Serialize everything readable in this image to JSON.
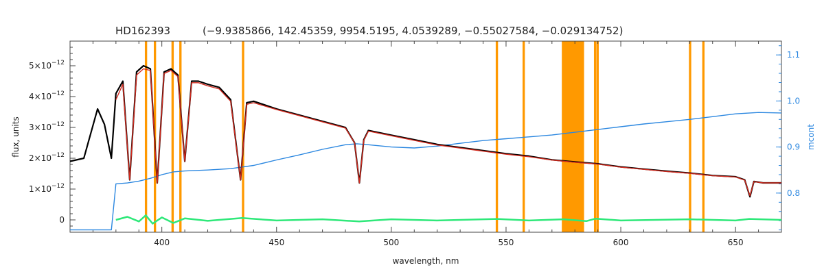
{
  "chart_data": {
    "type": "line",
    "title": "HD162393",
    "subtitle": "(−9.9385866, 142.45359, 9954.5195, 4.0539289, −0.55027584, −0.029134752)",
    "xlabel": "wavelength, nm",
    "ylabel": "flux, units",
    "y2label": "mcont",
    "xlim": [
      360,
      670
    ],
    "ylim": [
      -4e-13,
      5.8e-12
    ],
    "y2lim": [
      0.715,
      1.13
    ],
    "x_ticks": [
      400,
      450,
      500,
      550,
      600,
      650
    ],
    "x_tick_labels": [
      "400",
      "450",
      "500",
      "550",
      "600",
      "650"
    ],
    "y_ticks": [
      0,
      1e-12,
      2e-12,
      3e-12,
      4e-12,
      5e-12
    ],
    "y_tick_labels": [
      {
        "mant": "0",
        "exp": ""
      },
      {
        "mant": "1×10",
        "exp": "−12"
      },
      {
        "mant": "2×10",
        "exp": "−12"
      },
      {
        "mant": "3×10",
        "exp": "−12"
      },
      {
        "mant": "4×10",
        "exp": "−12"
      },
      {
        "mant": "5×10",
        "exp": "−12"
      }
    ],
    "y2_ticks": [
      0.8,
      0.9,
      1.0,
      1.1
    ],
    "y2_tick_labels": [
      "0.8",
      "0.9",
      "1.0",
      "1.1"
    ],
    "masked_bands": [
      [
        392.6,
        393.6
      ],
      [
        396.5,
        397.5
      ],
      [
        404.2,
        405.2
      ],
      [
        407.6,
        408.6
      ],
      [
        434.9,
        435.9
      ],
      [
        545.5,
        546.5
      ],
      [
        557.2,
        558.2
      ],
      [
        574.3,
        584.0
      ],
      [
        588.3,
        589.3
      ],
      [
        589.4,
        590.4
      ],
      [
        629.7,
        630.7
      ],
      [
        635.5,
        636.5
      ]
    ],
    "series": [
      {
        "name": "",
        "role": "observed",
        "color": "#000000",
        "axis": "left",
        "x": [
          360,
          366,
          369,
          372,
          375,
          378,
          380,
          383,
          386,
          389,
          392,
          395,
          398,
          401,
          404,
          407,
          410,
          413,
          416,
          420,
          425,
          430,
          434.3,
          437,
          440,
          450,
          460,
          470,
          480,
          484,
          486.1,
          488,
          490,
          500,
          510,
          520,
          530,
          540,
          550,
          560,
          570,
          580,
          590,
          600,
          610,
          620,
          630,
          640,
          650,
          654,
          656.3,
          658,
          662,
          670
        ],
        "y": [
          1.9e-12,
          2e-12,
          2.8e-12,
          3.6e-12,
          3.1e-12,
          2e-12,
          4.1e-12,
          4.5e-12,
          1.3e-12,
          4.8e-12,
          5e-12,
          4.9e-12,
          1.2e-12,
          4.8e-12,
          4.9e-12,
          4.7e-12,
          1.9e-12,
          4.5e-12,
          4.5e-12,
          4.4e-12,
          4.3e-12,
          3.9e-12,
          1.3e-12,
          3.8e-12,
          3.85e-12,
          3.6e-12,
          3.4e-12,
          3.2e-12,
          3e-12,
          2.5e-12,
          1.2e-12,
          2.6e-12,
          2.9e-12,
          2.75e-12,
          2.6e-12,
          2.45e-12,
          2.35e-12,
          2.25e-12,
          2.15e-12,
          2.07e-12,
          1.95e-12,
          1.88e-12,
          1.82e-12,
          1.72e-12,
          1.65e-12,
          1.58e-12,
          1.52e-12,
          1.44e-12,
          1.4e-12,
          1.3e-12,
          7.5e-13,
          1.25e-12,
          1.2e-12,
          1.2e-12
        ]
      },
      {
        "name": "",
        "role": "model",
        "color": "#d42a1e",
        "axis": "left",
        "x": [
          380,
          383,
          386,
          389,
          392,
          395,
          398,
          401,
          404,
          407,
          410,
          413,
          416,
          420,
          425,
          430,
          434.3,
          437,
          440,
          450,
          460,
          470,
          480,
          484,
          486.1,
          488,
          490,
          500,
          510,
          520,
          530,
          540,
          550,
          560,
          570,
          580,
          590,
          600,
          610,
          620,
          630,
          640,
          650,
          654,
          656.3,
          658,
          662,
          670
        ],
        "y": [
          3.9e-12,
          4.4e-12,
          1.3e-12,
          4.7e-12,
          4.9e-12,
          4.85e-12,
          1.2e-12,
          4.75e-12,
          4.85e-12,
          4.65e-12,
          1.9e-12,
          4.45e-12,
          4.45e-12,
          4.35e-12,
          4.25e-12,
          3.85e-12,
          1.3e-12,
          3.75e-12,
          3.8e-12,
          3.58e-12,
          3.38e-12,
          3.18e-12,
          2.98e-12,
          2.5e-12,
          1.2e-12,
          2.58e-12,
          2.88e-12,
          2.73e-12,
          2.58e-12,
          2.43e-12,
          2.33e-12,
          2.23e-12,
          2.13e-12,
          2.05e-12,
          1.94e-12,
          1.87e-12,
          1.81e-12,
          1.71e-12,
          1.64e-12,
          1.57e-12,
          1.51e-12,
          1.43e-12,
          1.39e-12,
          1.29e-12,
          7.8e-13,
          1.24e-12,
          1.2e-12,
          1.2e-12
        ]
      },
      {
        "name": "",
        "role": "residual",
        "color": "#2ee879",
        "axis": "left",
        "x": [
          380,
          385,
          390,
          393,
          396,
          400,
          405,
          410,
          420,
          435,
          450,
          470,
          486,
          500,
          520,
          546,
          560,
          575,
          585,
          589,
          600,
          630,
          650,
          656,
          670
        ],
        "y": [
          0,
          1e-13,
          -5e-14,
          1.5e-13,
          -1.2e-13,
          8e-14,
          -1e-13,
          5e-14,
          -3e-14,
          6e-14,
          -2e-14,
          2e-14,
          -5e-14,
          2e-14,
          -2e-14,
          3e-14,
          -2e-14,
          2e-14,
          -4e-14,
          4e-14,
          -2e-14,
          2e-14,
          -2e-14,
          3e-14,
          0
        ]
      },
      {
        "name": "",
        "role": "continuum",
        "color": "#2b87e0",
        "axis": "right",
        "x": [
          360,
          365,
          370,
          375,
          378,
          380,
          385,
          390,
          395,
          400,
          405,
          410,
          420,
          430,
          440,
          450,
          460,
          470,
          480,
          485,
          490,
          500,
          510,
          520,
          530,
          540,
          550,
          560,
          570,
          580,
          590,
          600,
          610,
          620,
          630,
          640,
          650,
          660,
          670
        ],
        "y": [
          0.72,
          0.72,
          0.72,
          0.72,
          0.72,
          0.82,
          0.822,
          0.826,
          0.832,
          0.84,
          0.846,
          0.848,
          0.85,
          0.853,
          0.86,
          0.872,
          0.883,
          0.895,
          0.905,
          0.907,
          0.905,
          0.9,
          0.898,
          0.902,
          0.908,
          0.914,
          0.918,
          0.922,
          0.926,
          0.932,
          0.938,
          0.944,
          0.95,
          0.955,
          0.96,
          0.966,
          0.972,
          0.975,
          0.974
        ]
      }
    ]
  }
}
